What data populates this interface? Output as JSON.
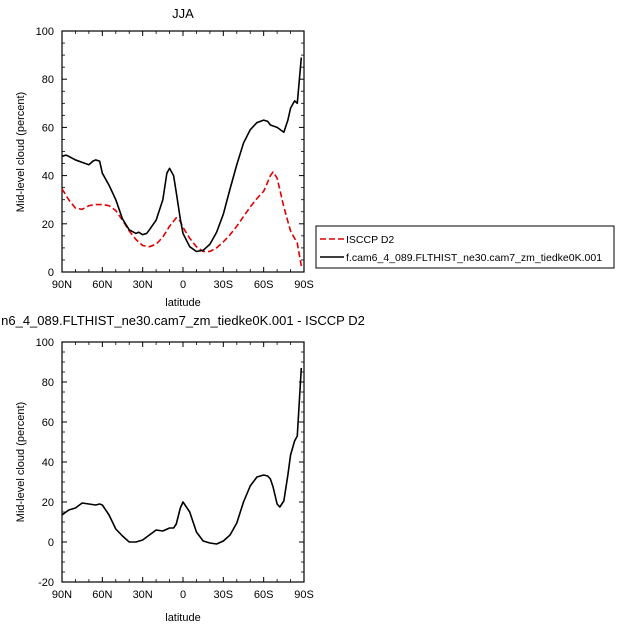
{
  "chart_data": [
    {
      "type": "line",
      "title": "JJA",
      "xlabel": "latitude",
      "ylabel": "Mid-level cloud (percent)",
      "xlim": [
        90,
        -90
      ],
      "ylim": [
        0,
        100
      ],
      "xticks": [
        {
          "value": 90,
          "label": "90N"
        },
        {
          "value": 60,
          "label": "60N"
        },
        {
          "value": 30,
          "label": "30N"
        },
        {
          "value": 0,
          "label": "0"
        },
        {
          "value": -30,
          "label": "30S"
        },
        {
          "value": -60,
          "label": "60S"
        },
        {
          "value": -90,
          "label": "90S"
        }
      ],
      "yticks": [
        0,
        20,
        40,
        60,
        80,
        100
      ],
      "legend_position": "right",
      "series": [
        {
          "name": "ISCCP D2",
          "color": "#e00000",
          "dash": "dashed",
          "x": [
            90,
            85,
            80,
            75,
            70,
            65,
            60,
            55,
            50,
            45,
            40,
            35,
            30,
            25,
            20,
            15,
            10,
            5,
            2,
            0,
            -5,
            -10,
            -15,
            -20,
            -25,
            -30,
            -35,
            -40,
            -45,
            -50,
            -55,
            -60,
            -62,
            -65,
            -67,
            -70,
            -75,
            -80,
            -85,
            -88
          ],
          "y": [
            34.5,
            30,
            26.5,
            26,
            27.5,
            28,
            28,
            27.5,
            25.5,
            21.5,
            17,
            13.5,
            11,
            10.5,
            11.5,
            14.5,
            19,
            22.5,
            21,
            18.5,
            14,
            10.5,
            8.5,
            8.5,
            10,
            12.5,
            15.5,
            19,
            23,
            27,
            30.5,
            33.5,
            36,
            40,
            41.5,
            39,
            27,
            17,
            12,
            2.5
          ]
        },
        {
          "name": "f.cam6_4_089.FLTHIST_ne30.cam7_zm_tiedke0K.001",
          "color": "#000000",
          "dash": "solid",
          "x": [
            90,
            87,
            85,
            80,
            75,
            70,
            67,
            65,
            62,
            60,
            55,
            50,
            45,
            40,
            35,
            33,
            30,
            27,
            25,
            20,
            15,
            12,
            10,
            7,
            5,
            2,
            0,
            -5,
            -10,
            -15,
            -20,
            -25,
            -30,
            -35,
            -40,
            -45,
            -50,
            -55,
            -60,
            -63,
            -65,
            -70,
            -75,
            -78,
            -80,
            -83,
            -85,
            -88
          ],
          "y": [
            48,
            48.5,
            48,
            46.5,
            45.5,
            44.5,
            46,
            46.5,
            46,
            41,
            36,
            30,
            22,
            17.5,
            16,
            16.5,
            15.5,
            16,
            17.5,
            21.5,
            30,
            41,
            43,
            40,
            33,
            22,
            16,
            10.5,
            8.5,
            9,
            11.5,
            16.5,
            24,
            34.5,
            44.5,
            53.5,
            59,
            62,
            63,
            62.5,
            61,
            60,
            58,
            63,
            68,
            71,
            70,
            89
          ]
        }
      ]
    },
    {
      "type": "line",
      "title": "n6_4_089.FLTHIST_ne30.cam7_zm_tiedke0K.001 - ISCCP D2",
      "xlabel": "latitude",
      "ylabel": "Mid-level cloud (percent)",
      "xlim": [
        90,
        -90
      ],
      "ylim": [
        -20,
        100
      ],
      "xticks": [
        {
          "value": 90,
          "label": "90N"
        },
        {
          "value": 60,
          "label": "60N"
        },
        {
          "value": 30,
          "label": "30N"
        },
        {
          "value": 0,
          "label": "0"
        },
        {
          "value": -30,
          "label": "30S"
        },
        {
          "value": -60,
          "label": "60S"
        },
        {
          "value": -90,
          "label": "90S"
        }
      ],
      "yticks": [
        -20,
        0,
        20,
        40,
        60,
        80,
        100
      ],
      "series": [
        {
          "name": "",
          "color": "#000000",
          "dash": "solid",
          "x": [
            90,
            88,
            85,
            80,
            75,
            70,
            65,
            62,
            60,
            55,
            50,
            45,
            40,
            35,
            30,
            27,
            25,
            20,
            15,
            10,
            7,
            5,
            2,
            0,
            -5,
            -10,
            -15,
            -20,
            -25,
            -30,
            -35,
            -40,
            -45,
            -50,
            -55,
            -60,
            -63,
            -65,
            -67,
            -70,
            -72,
            -75,
            -78,
            -80,
            -83,
            -85,
            -88
          ],
          "y": [
            13.5,
            14.5,
            16,
            17,
            19.5,
            19,
            18.5,
            19,
            18.5,
            13.5,
            6.5,
            3,
            0,
            0,
            1,
            2.5,
            3.5,
            6,
            5.5,
            7,
            7,
            9,
            17,
            20,
            15,
            5,
            0.5,
            -0.5,
            -1,
            0.5,
            3.5,
            9.5,
            20,
            28,
            32.5,
            33.5,
            33,
            31.5,
            27.5,
            19,
            17.5,
            20.5,
            33.5,
            43.5,
            50.5,
            53,
            87
          ]
        }
      ]
    }
  ]
}
